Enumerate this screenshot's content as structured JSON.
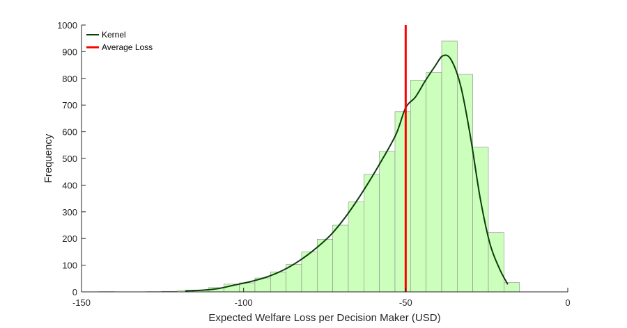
{
  "chart_data": {
    "type": "bar",
    "title": "",
    "xlabel": "Expected Welfare Loss per Decision Maker (USD)",
    "ylabel": "Frequency",
    "xlim": [
      -150,
      0
    ],
    "ylim": [
      0,
      1000
    ],
    "x_ticks": [
      -150,
      -100,
      -50,
      0
    ],
    "y_ticks": [
      0,
      100,
      200,
      300,
      400,
      500,
      600,
      700,
      800,
      900,
      1000
    ],
    "grid": false,
    "legend_position": "top-left",
    "bin_width": 4.8,
    "bins": [
      {
        "x_start": -144.5,
        "x_end": -139.7,
        "count": 1
      },
      {
        "x_start": -139.7,
        "x_end": -134.9,
        "count": 0
      },
      {
        "x_start": -134.9,
        "x_end": -130.1,
        "count": 0
      },
      {
        "x_start": -130.1,
        "x_end": -125.3,
        "count": 1
      },
      {
        "x_start": -125.3,
        "x_end": -120.5,
        "count": 2
      },
      {
        "x_start": -120.5,
        "x_end": -115.7,
        "count": 4
      },
      {
        "x_start": -115.7,
        "x_end": -110.9,
        "count": 7
      },
      {
        "x_start": -110.9,
        "x_end": -106.1,
        "count": 16
      },
      {
        "x_start": -106.1,
        "x_end": -101.3,
        "count": 29
      },
      {
        "x_start": -101.3,
        "x_end": -96.5,
        "count": 34
      },
      {
        "x_start": -96.5,
        "x_end": -91.7,
        "count": 52
      },
      {
        "x_start": -91.7,
        "x_end": -86.9,
        "count": 75
      },
      {
        "x_start": -86.9,
        "x_end": -82.1,
        "count": 103
      },
      {
        "x_start": -82.1,
        "x_end": -77.3,
        "count": 150
      },
      {
        "x_start": -77.3,
        "x_end": -72.5,
        "count": 197
      },
      {
        "x_start": -72.5,
        "x_end": -67.7,
        "count": 250
      },
      {
        "x_start": -67.7,
        "x_end": -62.9,
        "count": 337
      },
      {
        "x_start": -62.9,
        "x_end": -58.1,
        "count": 440
      },
      {
        "x_start": -58.1,
        "x_end": -53.3,
        "count": 527
      },
      {
        "x_start": -53.3,
        "x_end": -48.5,
        "count": 675
      },
      {
        "x_start": -48.5,
        "x_end": -43.7,
        "count": 793
      },
      {
        "x_start": -43.7,
        "x_end": -38.9,
        "count": 822
      },
      {
        "x_start": -38.9,
        "x_end": -34.1,
        "count": 940
      },
      {
        "x_start": -34.1,
        "x_end": -29.3,
        "count": 815
      },
      {
        "x_start": -29.3,
        "x_end": -24.5,
        "count": 542
      },
      {
        "x_start": -24.5,
        "x_end": -19.7,
        "count": 222
      },
      {
        "x_start": -19.7,
        "x_end": -14.9,
        "count": 35
      }
    ],
    "series": [
      {
        "name": "Kernel",
        "type": "line",
        "color": "#0b3d0b",
        "x": [
          -118,
          -113,
          -108,
          -103,
          -98,
          -93,
          -88,
          -83,
          -78,
          -73,
          -68,
          -63,
          -58,
          -53,
          -50,
          -47,
          -44,
          -41,
          -38.5,
          -36,
          -33,
          -30,
          -27,
          -24,
          -21,
          -18.5
        ],
        "y": [
          4,
          6,
          12,
          25,
          38,
          55,
          80,
          115,
          160,
          215,
          290,
          380,
          480,
          590,
          690,
          730,
          790,
          845,
          885,
          870,
          770,
          580,
          350,
          180,
          85,
          28
        ]
      },
      {
        "name": "Average Loss",
        "type": "vline",
        "color": "#ff0000",
        "x": -50,
        "y_range": [
          0,
          1000
        ]
      }
    ],
    "bar_fill": "#ccffbb",
    "bar_edge": "#8a8a8a"
  }
}
